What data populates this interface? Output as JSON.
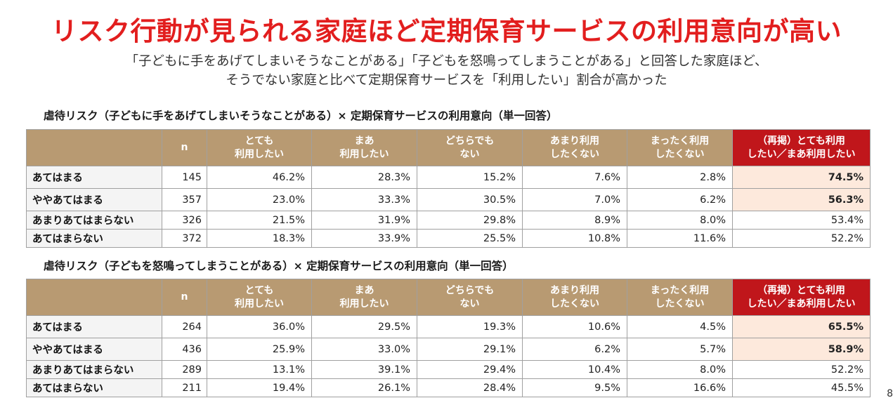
{
  "title": "リスク行動が見られる家庭ほど定期保育サービスの利用意向が高い",
  "subtitle": [
    "「子どもに手をあげてしまいそうなことがある」「子どもを怒鳴ってしまうことがある」と回答した家庭ほど、",
    "そうでない家庭と比べて定期保育サービスを「利用したい」割合が高かった"
  ],
  "headers": {
    "n": "n",
    "col1": [
      "とても",
      "利用したい"
    ],
    "col2": [
      "まあ",
      "利用したい"
    ],
    "col3": [
      "どちらでも",
      "ない"
    ],
    "col4": [
      "あまり利用",
      "したくない"
    ],
    "col5": [
      "まったく利用",
      "したくない"
    ],
    "col6": [
      "（再掲）とても利用",
      "したい／まあ利用したい"
    ]
  },
  "table1": {
    "title": "虐待リスク（子どもに手をあげてしまいそうなことがある）× 定期保育サービスの利用意向（単一回答）",
    "rows": [
      {
        "label": "あてはまる",
        "n": "145",
        "v": [
          "46.2%",
          "28.3%",
          "15.2%",
          "7.6%",
          "2.8%",
          "74.5%"
        ]
      },
      {
        "label": "ややあてはまる",
        "n": "357",
        "v": [
          "23.0%",
          "33.3%",
          "30.5%",
          "7.0%",
          "6.2%",
          "56.3%"
        ]
      },
      {
        "label": "あまりあてはまらない",
        "n": "326",
        "v": [
          "21.5%",
          "31.9%",
          "29.8%",
          "8.9%",
          "8.0%",
          "53.4%"
        ]
      },
      {
        "label": "あてはまらない",
        "n": "372",
        "v": [
          "18.3%",
          "33.9%",
          "25.5%",
          "10.8%",
          "11.6%",
          "52.2%"
        ]
      }
    ]
  },
  "table2": {
    "title": "虐待リスク（子どもを怒鳴ってしまうことがある）× 定期保育サービスの利用意向（単一回答）",
    "rows": [
      {
        "label": "あてはまる",
        "n": "264",
        "v": [
          "36.0%",
          "29.5%",
          "19.3%",
          "10.6%",
          "4.5%",
          "65.5%"
        ]
      },
      {
        "label": "ややあてはまる",
        "n": "436",
        "v": [
          "25.9%",
          "33.0%",
          "29.1%",
          "6.2%",
          "5.7%",
          "58.9%"
        ]
      },
      {
        "label": "あまりあてはまらない",
        "n": "289",
        "v": [
          "13.1%",
          "39.1%",
          "29.4%",
          "10.4%",
          "8.0%",
          "52.2%"
        ]
      },
      {
        "label": "あてはまらない",
        "n": "211",
        "v": [
          "19.4%",
          "26.1%",
          "28.4%",
          "9.5%",
          "16.6%",
          "45.5%"
        ]
      }
    ]
  },
  "page_number": "8"
}
